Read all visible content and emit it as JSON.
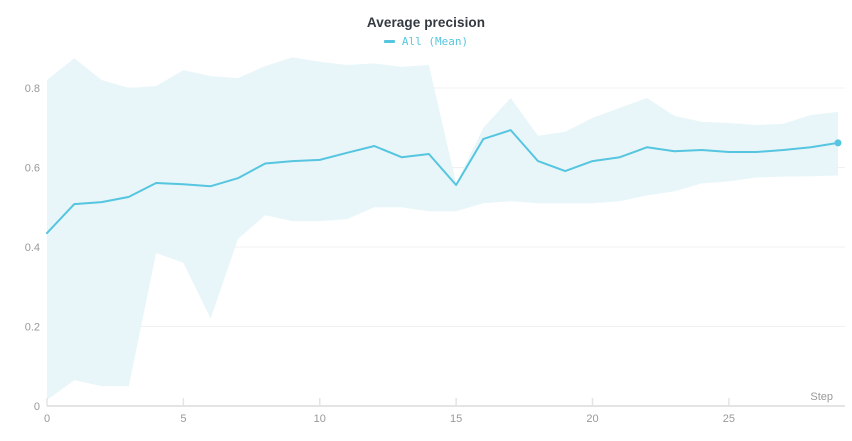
{
  "chart_data": {
    "type": "line",
    "title": "Average precision",
    "xlabel": "Step",
    "ylabel": "",
    "legend": [
      {
        "label": "All (Mean)"
      }
    ],
    "legend_position": "top",
    "grid": true,
    "xlim": [
      0,
      29
    ],
    "ylim": [
      0,
      0.9
    ],
    "x_tick_values": [
      0,
      5,
      10,
      15,
      20,
      25
    ],
    "x_tick_labels": [
      "0",
      "5",
      "10",
      "15",
      "20",
      "25"
    ],
    "y_tick_values": [
      0,
      0.2,
      0.4,
      0.6,
      0.8
    ],
    "y_tick_labels": [
      "0",
      "0.2",
      "0.4",
      "0.6",
      "0.8"
    ],
    "x": [
      0,
      1,
      2,
      3,
      4,
      5,
      6,
      7,
      8,
      9,
      10,
      11,
      12,
      13,
      14,
      15,
      16,
      17,
      18,
      19,
      20,
      21,
      22,
      23,
      24,
      25,
      26,
      27,
      28,
      29
    ],
    "series": [
      {
        "name": "All (Mean)",
        "values": [
          0.435,
          0.508,
          0.513,
          0.526,
          0.561,
          0.558,
          0.553,
          0.573,
          0.61,
          0.616,
          0.619,
          0.637,
          0.654,
          0.626,
          0.634,
          0.556,
          0.672,
          0.694,
          0.616,
          0.591,
          0.616,
          0.626,
          0.651,
          0.641,
          0.644,
          0.639,
          0.639,
          0.644,
          0.651,
          0.662
        ],
        "end_marker": true
      }
    ],
    "band": {
      "name": "confidence-band",
      "upper": [
        0.82,
        0.875,
        0.82,
        0.8,
        0.805,
        0.845,
        0.83,
        0.825,
        0.855,
        0.877,
        0.866,
        0.858,
        0.862,
        0.853,
        0.858,
        0.56,
        0.7,
        0.775,
        0.68,
        0.69,
        0.725,
        0.75,
        0.775,
        0.73,
        0.715,
        0.712,
        0.707,
        0.71,
        0.732,
        0.74
      ],
      "lower": [
        0.015,
        0.065,
        0.05,
        0.05,
        0.385,
        0.36,
        0.22,
        0.42,
        0.48,
        0.465,
        0.465,
        0.47,
        0.5,
        0.5,
        0.49,
        0.49,
        0.51,
        0.515,
        0.51,
        0.51,
        0.51,
        0.515,
        0.53,
        0.54,
        0.56,
        0.565,
        0.575,
        0.577,
        0.578,
        0.58
      ]
    },
    "colors": {
      "line": "#56c5e0",
      "band_fill": "#e8f6f9",
      "grid": "#f0f0f0",
      "axis": "#e4e4e4",
      "tick_label": "#999999",
      "title": "#333940"
    }
  }
}
